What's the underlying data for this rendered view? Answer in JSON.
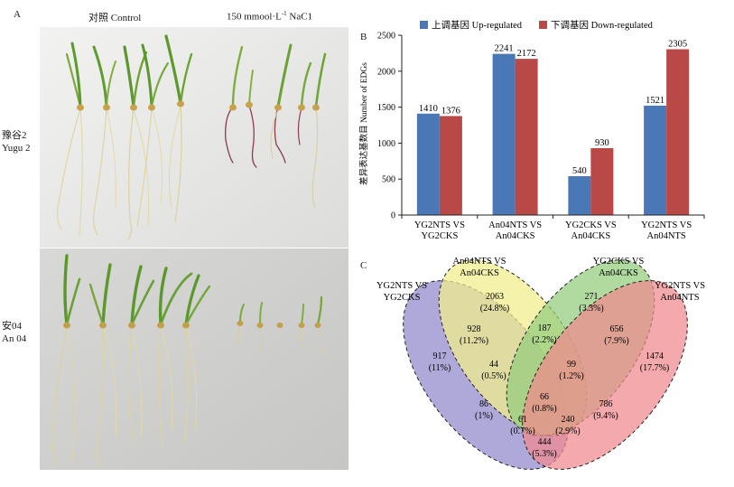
{
  "panel_a": {
    "letter": "A",
    "col_labels": {
      "control": "对照 Control",
      "salt_prefix": "150 mmool·L",
      "salt_sup": "-1",
      "salt_suffix": " NaC1"
    },
    "rows": [
      {
        "line1": "豫谷2",
        "line2": "Yugu 2"
      },
      {
        "line1": "安04",
        "line2": "An 04"
      }
    ]
  },
  "panel_b": {
    "letter": "B",
    "chart_data": {
      "type": "bar",
      "title": "",
      "xlabel": "",
      "ylabel": "差异表达基数目 Number of EDGs",
      "ylim": [
        0,
        2500
      ],
      "yticks": [
        0,
        500,
        1000,
        1500,
        2000,
        2500
      ],
      "legend_position": "top",
      "categories": [
        [
          "YG2NTS VS",
          "YG2CKS"
        ],
        [
          "An04NTS VS",
          "An04CKS"
        ],
        [
          "YG2CKS VS",
          "An04CKS"
        ],
        [
          "YG2NTS VS",
          "An04NTS"
        ]
      ],
      "series": [
        {
          "name": "上调基因 Up-regulated",
          "color": "#4a78b6",
          "values": [
            1410,
            2241,
            540,
            1521
          ]
        },
        {
          "name": "下调基因 Down-regulated",
          "color": "#b94947",
          "values": [
            1376,
            2172,
            930,
            2305
          ]
        }
      ]
    }
  },
  "panel_c": {
    "letter": "C",
    "sets": [
      {
        "line1": "YG2NTS VS",
        "line2": "YG2CKS",
        "color": "#9088cc"
      },
      {
        "line1": "An04NTS VS",
        "line2": "An04CKS",
        "color": "#f1ee8a"
      },
      {
        "line1": "YG2CKS VS",
        "line2": "An04CKS",
        "color": "#93cc7c"
      },
      {
        "line1": "YG2NTS VS",
        "line2": "An04NTS",
        "color": "#f0898d"
      }
    ],
    "regions": [
      {
        "count": "917",
        "pct": "(11%)"
      },
      {
        "count": "2063",
        "pct": "(24.8%)"
      },
      {
        "count": "271",
        "pct": "(3.3%)"
      },
      {
        "count": "1474",
        "pct": "(17.7%)"
      },
      {
        "count": "928",
        "pct": "(11.2%)"
      },
      {
        "count": "187",
        "pct": "(2.2%)"
      },
      {
        "count": "656",
        "pct": "(7.9%)"
      },
      {
        "count": "44",
        "pct": "(0.5%)"
      },
      {
        "count": "99",
        "pct": "(1.2%)"
      },
      {
        "count": "86",
        "pct": "(1%)"
      },
      {
        "count": "786",
        "pct": "(9.4%)"
      },
      {
        "count": "66",
        "pct": "(0.8%)"
      },
      {
        "count": "61",
        "pct": "(0.7%)"
      },
      {
        "count": "240",
        "pct": "(2.9%)"
      },
      {
        "count": "444",
        "pct": "(5.3%)"
      }
    ]
  }
}
